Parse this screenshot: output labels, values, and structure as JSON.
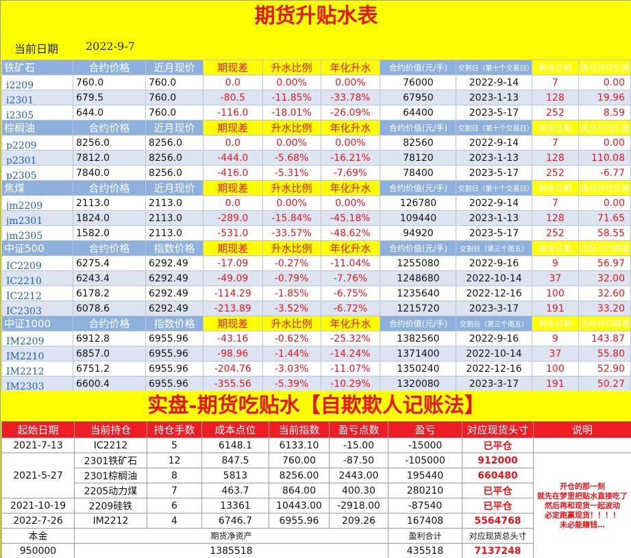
{
  "title": "期货升贴水表",
  "date_label": "当前日期",
  "date_value": "2022-9-7",
  "sections": [
    {
      "name": "铁矿石",
      "headers": [
        "合约价格",
        "近月现价",
        "期现差",
        "升水比例",
        "年化升水",
        "合约价值(元/手)",
        "交割日（第十个交易日）",
        "剩余日期",
        "换月月均价差"
      ],
      "rows": [
        [
          "i2209",
          "760.0",
          "760.0",
          "0.0",
          "0.00%",
          "0.00%",
          "76000",
          "2022-9-14",
          "7",
          "0.00"
        ],
        [
          "i2301",
          "679.5",
          "760.0",
          "-80.5",
          "-11.85%",
          "-33.78%",
          "67950",
          "2023-1-13",
          "128",
          "19.96"
        ],
        [
          "i2305",
          "644.0",
          "760.0",
          "-116.0",
          "-18.01%",
          "-26.09%",
          "64400",
          "2023-5-17",
          "252",
          "8.59"
        ]
      ]
    },
    {
      "name": "棕榈油",
      "headers": [
        "合约价格",
        "近月现价",
        "期现差",
        "升水比例",
        "年化升水",
        "合约价值(元/手)",
        "交割日（第十个交易日）",
        "剩余日期",
        "换月月均价差"
      ],
      "rows": [
        [
          "p2209",
          "8256.0",
          "8256.0",
          "0.0",
          "0.00%",
          "0.00%",
          "82560",
          "2022-9-14",
          "7",
          "0.00"
        ],
        [
          "p2301",
          "7812.0",
          "8256.0",
          "-444.0",
          "-5.68%",
          "-16.21%",
          "78120",
          "2023-1-13",
          "128",
          "110.08"
        ],
        [
          "p2305",
          "7840.0",
          "8256.0",
          "-416.0",
          "-5.31%",
          "-7.69%",
          "78400",
          "2023-5-17",
          "252",
          "-6.77"
        ]
      ]
    },
    {
      "name": "焦煤",
      "headers": [
        "合约价格",
        "近月现价",
        "期现差",
        "升水比例",
        "年化升水",
        "合约价值(元/手)",
        "交割日（第十个交易日）",
        "剩余日期",
        "换月月均价差"
      ],
      "rows": [
        [
          "jm2209",
          "2113.0",
          "2113.0",
          "0.0",
          "0.00%",
          "0.00%",
          "126780",
          "2022-9-14",
          "7",
          "0.00"
        ],
        [
          "jm2301",
          "1824.0",
          "2113.0",
          "-289.0",
          "-15.84%",
          "-45.18%",
          "109440",
          "2023-1-13",
          "128",
          "71.65"
        ],
        [
          "jm2305",
          "1582.0",
          "2113.0",
          "-531.0",
          "-33.57%",
          "-48.62%",
          "94920",
          "2023-5-17",
          "252",
          "58.55"
        ]
      ]
    },
    {
      "name": "中证500",
      "headers": [
        "合约价格",
        "指数价格",
        "期现差",
        "升水比例",
        "年化升水",
        "合约价值(元/手)",
        "交割日（第三个周五）",
        "剩余日期",
        "边际月均期差"
      ],
      "rows": [
        [
          "IC2209",
          "6275.4",
          "6292.49",
          "-17.09",
          "-0.27%",
          "-11.04%",
          "1255080",
          "2022-9-16",
          "9",
          "56.97"
        ],
        [
          "IC2210",
          "6243.4",
          "6292.49",
          "-49.09",
          "-0.79%",
          "-7.76%",
          "1248680",
          "2022-10-14",
          "37",
          "32.00"
        ],
        [
          "IC2212",
          "6178.2",
          "6292.49",
          "-114.29",
          "-1.85%",
          "-6.75%",
          "1235640",
          "2022-12-16",
          "100",
          "32.60"
        ],
        [
          "IC2303",
          "6078.6",
          "6292.49",
          "-213.89",
          "-3.52%",
          "-6.72%",
          "1215720",
          "2023-3-17",
          "191",
          "33.20"
        ]
      ]
    },
    {
      "name": "中证1000",
      "headers": [
        "合约价格",
        "指数价格",
        "期现差",
        "升水比例",
        "年化升水",
        "合约价值(元/手)",
        "交割日（第三个周五）",
        "剩余日期",
        "边际月均期差"
      ],
      "rows": [
        [
          "IM2209",
          "6912.8",
          "6955.96",
          "-43.16",
          "-0.62%",
          "-25.32%",
          "1382560",
          "2022-9-16",
          "9",
          "143.87"
        ],
        [
          "IM2210",
          "6857.0",
          "6955.96",
          "-98.96",
          "-1.44%",
          "-14.24%",
          "1371400",
          "2022-10-14",
          "37",
          "55.80"
        ],
        [
          "IM2212",
          "6751.2",
          "6955.96",
          "-204.76",
          "-3.03%",
          "-11.07%",
          "1350240",
          "2022-12-16",
          "100",
          "52.90"
        ],
        [
          "IM2303",
          "6600.4",
          "6955.96",
          "-355.56",
          "-5.39%",
          "-10.29%",
          "1320080",
          "2023-3-17",
          "191",
          "50.27"
        ]
      ]
    }
  ],
  "banner": "实盘-期货吃贴水【自欺欺人记账法】",
  "ledger": {
    "headers": [
      "起始日期",
      "当前持仓",
      "持仓手数",
      "成本点位",
      "当前指数",
      "盈亏点数",
      "盈亏",
      "对应现货头寸",
      "说明"
    ],
    "rows": [
      {
        "date": "2021-7-13",
        "pos": "IC2212",
        "lots": "5",
        "cost": "6148.1",
        "idx": "6133.10",
        "pts": "-15.00",
        "pnl": "-15000",
        "spot": "已平仓"
      },
      {
        "date": "2021-5-27",
        "pos": "2301铁矿石",
        "lots": "12",
        "cost": "847.5",
        "idx": "760.00",
        "pts": "-87.50",
        "pnl": "-105000",
        "spot": "912000"
      },
      {
        "date": "",
        "pos": "2301棕榈油",
        "lots": "8",
        "cost": "5813",
        "idx": "8256.00",
        "pts": "2443.00",
        "pnl": "195440",
        "spot": "660480"
      },
      {
        "date": "",
        "pos": "2205动力煤",
        "lots": "7",
        "cost": "463.7",
        "idx": "864.00",
        "pts": "400.30",
        "pnl": "280210",
        "spot": "已平仓"
      },
      {
        "date": "2021-10-19",
        "pos": "2209硅铁",
        "lots": "6",
        "cost": "13361",
        "idx": "10443.00",
        "pts": "-2918.00",
        "pnl": "-87540",
        "spot": "已平仓"
      },
      {
        "date": "2022-7-26",
        "pos": "IM2212",
        "lots": "4",
        "cost": "6746.7",
        "idx": "6955.96",
        "pts": "209.26",
        "pnl": "167408",
        "spot": "5564768"
      }
    ],
    "note": "开仓的那一刻\n就先在梦里把贴水直接吃了\n然后再和现货一起波动\n必定跑赢现货！！！！\n未必能赚钱…",
    "summary_labels": {
      "principal": "本金",
      "net_assets": "期货净资产",
      "pnl_total": "盈利合计",
      "spot_total": "对应现货总头寸"
    },
    "summary_values": {
      "principal": "950000",
      "net_assets": "1385518",
      "pnl_total": "435518",
      "spot_total": "7137248"
    }
  }
}
